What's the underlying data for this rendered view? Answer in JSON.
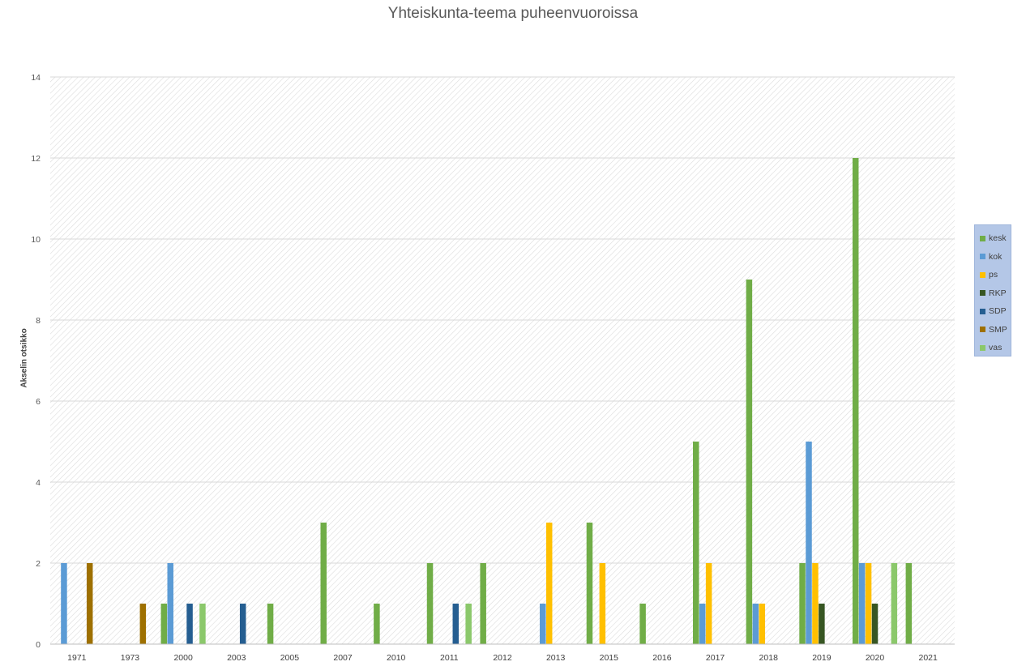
{
  "chart_data": {
    "type": "bar",
    "title": "Yhteiskunta-teema puheenvuoroissa",
    "xlabel": "",
    "ylabel": "Akselin otsikko",
    "ylim": [
      0,
      14
    ],
    "yticks": [
      0,
      2,
      4,
      6,
      8,
      10,
      12,
      14
    ],
    "grid": true,
    "legend_position": "right",
    "categories": [
      "1971",
      "1973",
      "2000",
      "2003",
      "2005",
      "2007",
      "2010",
      "2011",
      "2012",
      "2013",
      "2015",
      "2016",
      "2017",
      "2018",
      "2019",
      "2020",
      "2021"
    ],
    "series": [
      {
        "name": "kesk",
        "color": "#70ad47",
        "values": [
          null,
          null,
          1,
          null,
          1,
          3,
          1,
          2,
          2,
          null,
          3,
          1,
          5,
          9,
          2,
          12,
          2
        ]
      },
      {
        "name": "kok",
        "color": "#5b9bd5",
        "values": [
          2,
          null,
          2,
          null,
          null,
          null,
          null,
          null,
          null,
          1,
          null,
          null,
          1,
          1,
          5,
          2,
          null
        ]
      },
      {
        "name": "ps",
        "color": "#ffc000",
        "values": [
          null,
          null,
          null,
          null,
          null,
          null,
          null,
          null,
          null,
          3,
          2,
          null,
          2,
          1,
          2,
          2,
          null
        ]
      },
      {
        "name": "RKP",
        "color": "#375623",
        "values": [
          null,
          null,
          null,
          null,
          null,
          null,
          null,
          null,
          null,
          null,
          null,
          null,
          null,
          null,
          1,
          1,
          null
        ]
      },
      {
        "name": "SDP",
        "color": "#255e91",
        "values": [
          null,
          null,
          1,
          1,
          null,
          null,
          null,
          1,
          null,
          null,
          null,
          null,
          null,
          null,
          null,
          null,
          null
        ]
      },
      {
        "name": "SMP",
        "color": "#9e7000",
        "values": [
          2,
          1,
          null,
          null,
          null,
          null,
          null,
          null,
          null,
          null,
          null,
          null,
          null,
          null,
          null,
          null,
          null
        ]
      },
      {
        "name": "vas",
        "color": "#8bc86b",
        "values": [
          null,
          null,
          1,
          null,
          null,
          null,
          null,
          1,
          null,
          null,
          null,
          null,
          null,
          null,
          null,
          2,
          null
        ]
      }
    ]
  }
}
